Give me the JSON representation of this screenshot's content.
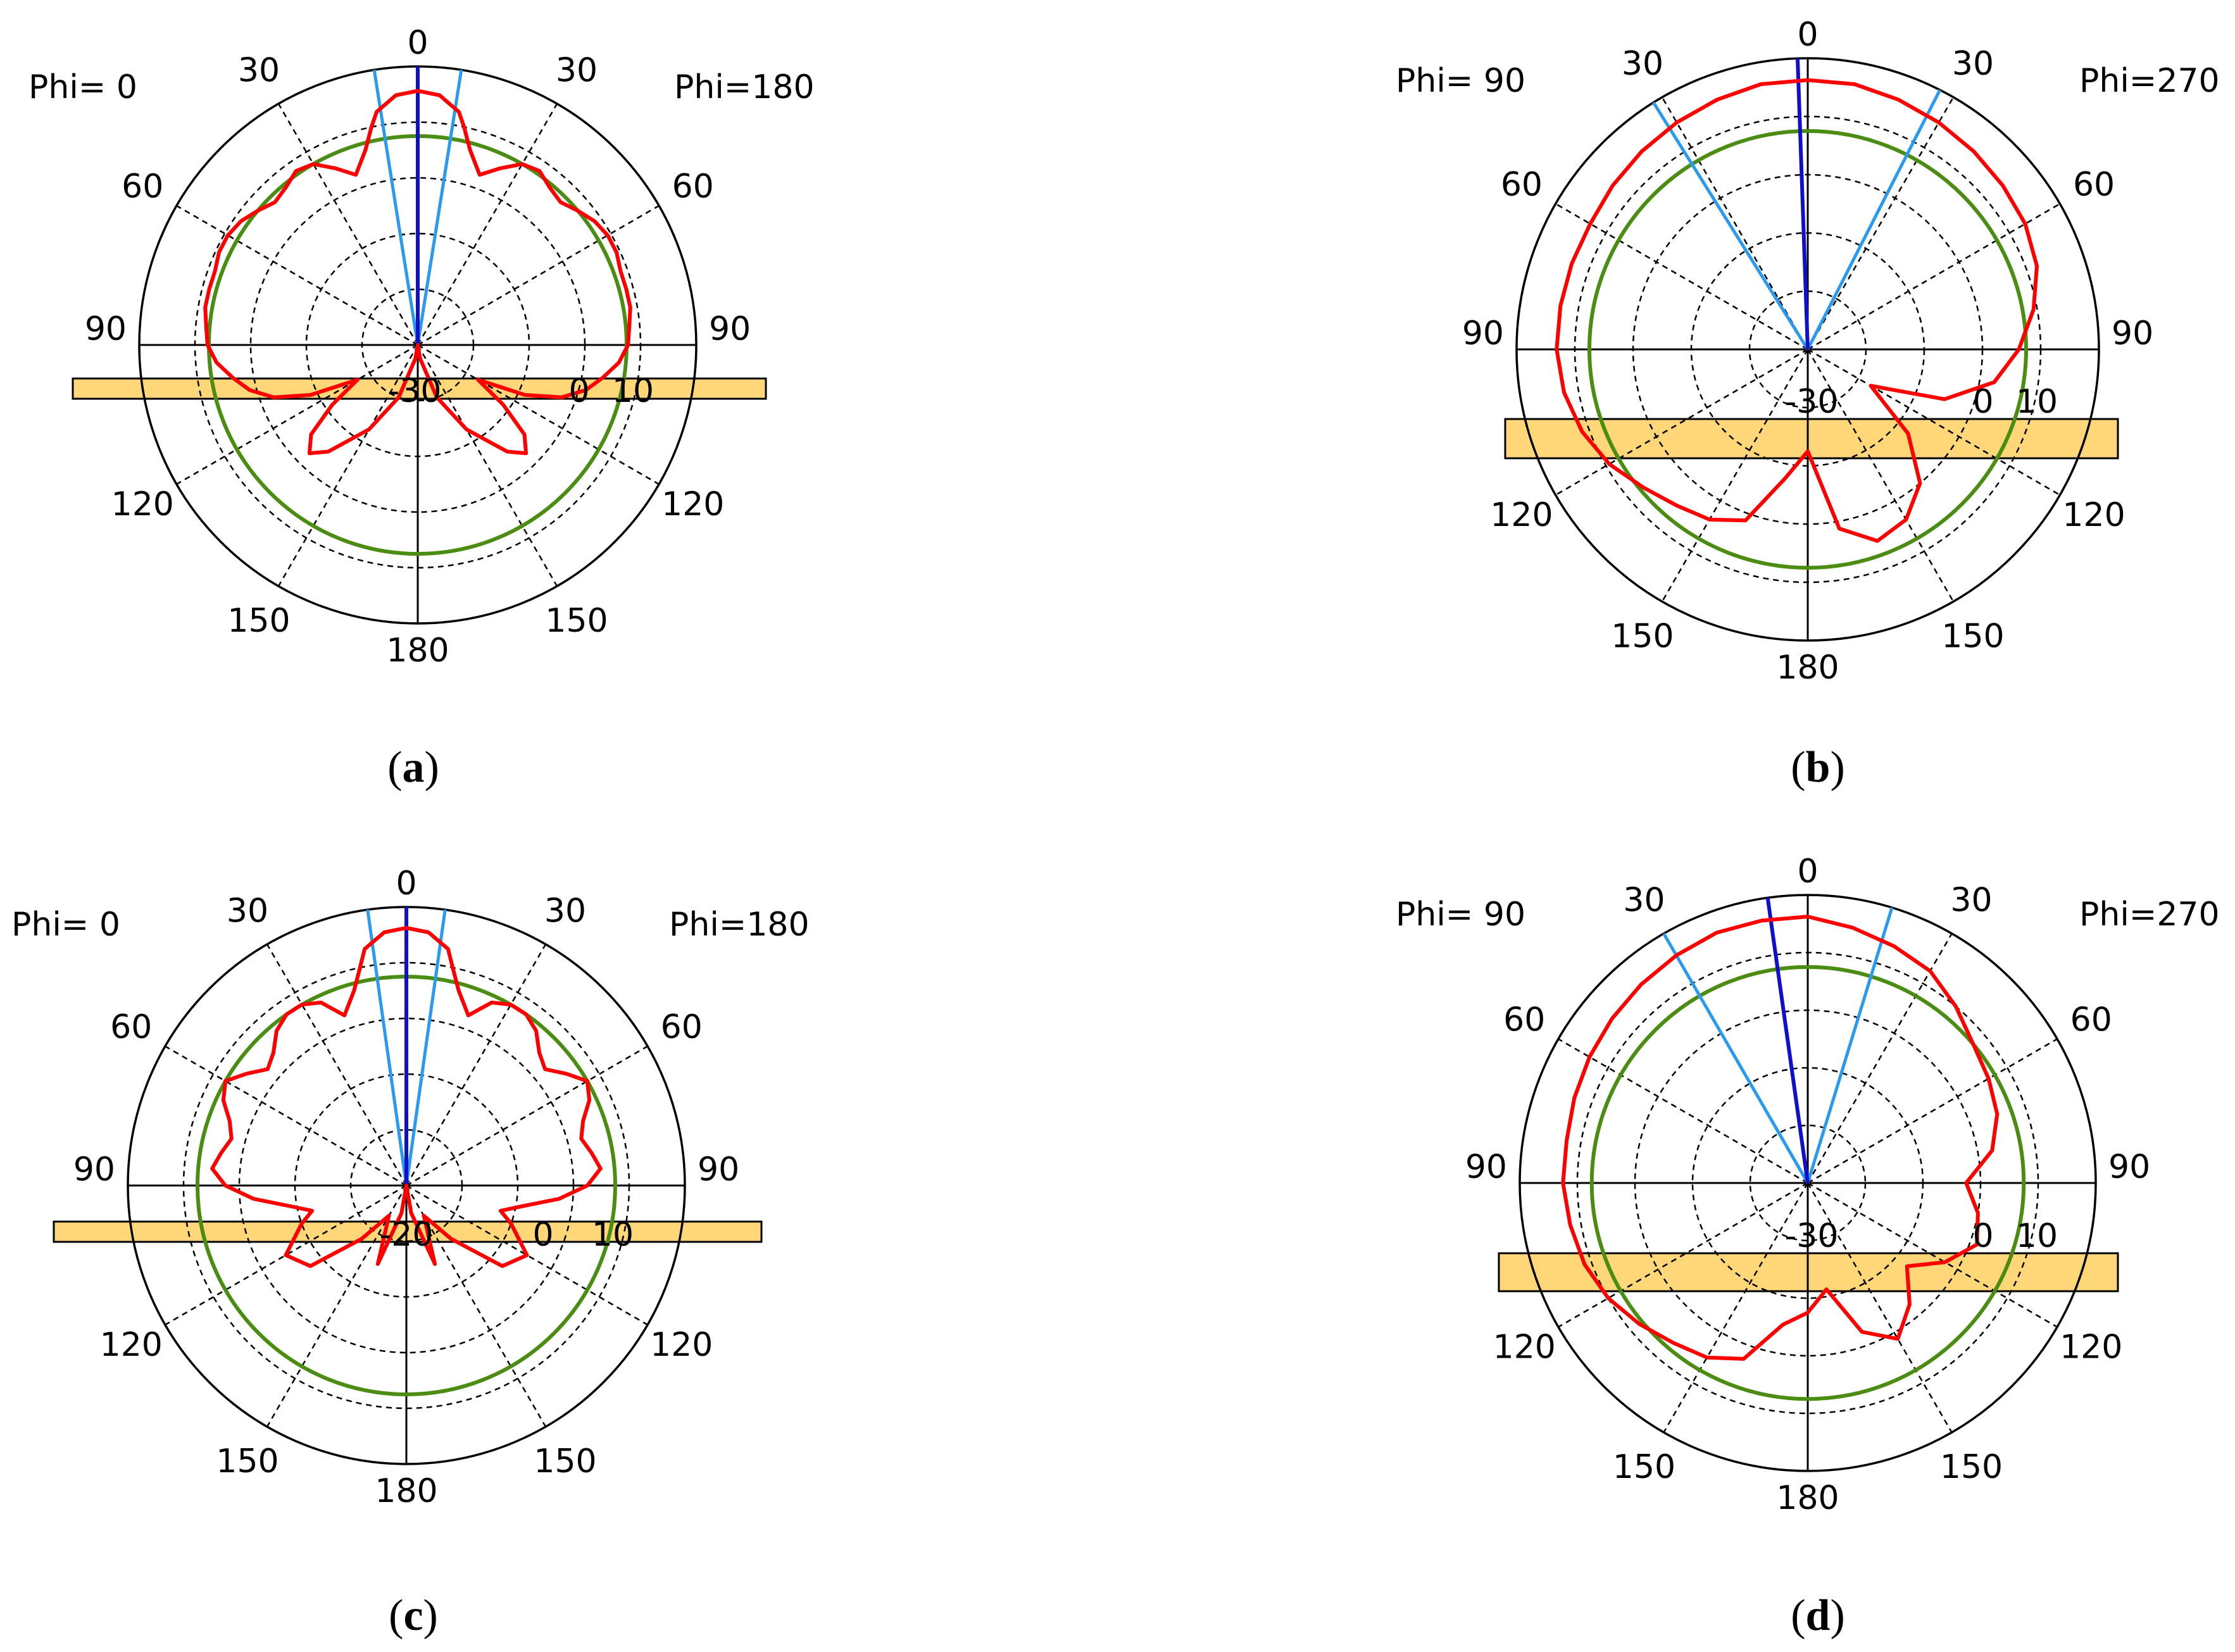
{
  "colors": {
    "pattern": "#ff0000",
    "reference_circle": "#4b8c12",
    "beam_axis": "#1010cc",
    "beam_edge": "#2a9af0",
    "ground_bar": "#ffd778",
    "grid": "#000000",
    "gridline_dashed": "#000000"
  },
  "chart_data": [
    {
      "type": "polar",
      "panel": "(a)",
      "caption_letter": "a",
      "left_label": "Phi=  0",
      "right_label": "Phi=180",
      "angle_labels": {
        "top": "0",
        "upper_left": "30",
        "upper_right": "30",
        "left60": "60",
        "right60": "60",
        "left90": "90",
        "right90": "90",
        "left120": "120",
        "right120": "120",
        "left150": "150",
        "right150": "150",
        "bottom": "180"
      },
      "radial_labels": [
        "-30",
        "0",
        "10"
      ],
      "radial_range_db": [
        -30,
        10
      ],
      "grid": true,
      "reference_circle_db": 0,
      "main_beam_deg": 0,
      "beam_edges_deg": [
        -9,
        9
      ],
      "pattern_db": {
        "angles": [
          0,
          5,
          10,
          12,
          15,
          20,
          25,
          30,
          35,
          40,
          45,
          50,
          55,
          60,
          65,
          70,
          75,
          80,
          85,
          90,
          95,
          100,
          105,
          110,
          115,
          120,
          125,
          130,
          135,
          140,
          150,
          160,
          170,
          180
        ],
        "left": [
          6.5,
          6,
          4,
          2,
          -1,
          -4,
          -2,
          0,
          0.5,
          -0.5,
          -1,
          0,
          1,
          1.5,
          1.5,
          1,
          1,
          1,
          0.5,
          0.2,
          -1,
          -3,
          -5,
          -8,
          -13,
          -20,
          -15,
          -10,
          -8,
          -10,
          -16,
          -22,
          -28,
          -30
        ],
        "right": [
          6.5,
          6,
          4,
          2,
          -1,
          -4,
          -2,
          0,
          0.5,
          -0.5,
          -1,
          0,
          1,
          1.5,
          1.5,
          1,
          1,
          1,
          0.5,
          0.2,
          -1,
          -3,
          -5,
          -8,
          -13,
          -20,
          -15,
          -10,
          -8,
          -10,
          -16,
          -22,
          -28,
          -30
        ]
      }
    },
    {
      "type": "polar",
      "panel": "(b)",
      "caption_letter": "b",
      "left_label": "Phi= 90",
      "right_label": "Phi=270",
      "angle_labels": {
        "top": "0",
        "upper_left": "30",
        "upper_right": "30",
        "left60": "60",
        "right60": "60",
        "left90": "90",
        "right90": "90",
        "left120": "120",
        "right120": "120",
        "left150": "150",
        "right150": "150",
        "bottom": "180"
      },
      "radial_labels": [
        "-30",
        "0",
        "10"
      ],
      "radial_range_db": [
        -30,
        10
      ],
      "grid": true,
      "reference_circle_db": 0,
      "main_beam_deg": -2,
      "beam_edges_deg": [
        -32,
        27
      ],
      "pattern_db": {
        "angles": [
          0,
          10,
          20,
          30,
          40,
          50,
          60,
          70,
          80,
          90,
          100,
          110,
          120,
          130,
          140,
          150,
          160,
          170,
          180
        ],
        "left": [
          7,
          7,
          6.5,
          6,
          5.5,
          5,
          4.5,
          4.5,
          4.5,
          4.5,
          4,
          3,
          1.5,
          -0.5,
          -2,
          -3,
          -5,
          -12,
          -16
        ],
        "right": [
          7,
          7,
          6.5,
          6,
          5.5,
          5,
          4.5,
          3.5,
          1.5,
          -1,
          -4,
          -10,
          -20,
          -12,
          -6,
          -3,
          -2,
          -5,
          -16
        ]
      }
    },
    {
      "type": "polar",
      "panel": "(c)",
      "caption_letter": "c",
      "left_label": "Phi=  0",
      "right_label": "Phi=180",
      "angle_labels": {
        "top": "0",
        "upper_left": "30",
        "upper_right": "30",
        "left60": "60",
        "right60": "60",
        "left90": "90",
        "right90": "90",
        "left120": "120",
        "right120": "120",
        "left150": "150",
        "right150": "150",
        "bottom": "180"
      },
      "radial_labels": [
        "-20",
        "0",
        "10"
      ],
      "radial_range_db": [
        -30,
        10
      ],
      "grid": true,
      "reference_circle_db": 0,
      "main_beam_deg": 0,
      "beam_edges_deg": [
        -8,
        8
      ],
      "pattern_db": {
        "angles": [
          0,
          5,
          10,
          12,
          15,
          20,
          25,
          30,
          35,
          40,
          45,
          50,
          55,
          60,
          65,
          70,
          75,
          80,
          85,
          90,
          95,
          100,
          105,
          110,
          120,
          130,
          140,
          150,
          160,
          170,
          180
        ],
        "left": [
          7,
          6.5,
          4.5,
          2,
          -1,
          -4,
          -1,
          0,
          0,
          -1,
          -3,
          -4,
          -2,
          0,
          -1,
          -3,
          -4,
          -3,
          -2,
          -4,
          -8,
          -13,
          -16,
          -14,
          -10,
          -12,
          -20,
          -25,
          -18,
          -26,
          -30
        ],
        "right": [
          7,
          6.5,
          4.5,
          2,
          -1,
          -4,
          -1,
          0,
          0,
          -1,
          -3,
          -4,
          -2,
          0,
          -1,
          -3,
          -4,
          -3,
          -2,
          -4,
          -8,
          -13,
          -16,
          -14,
          -10,
          -12,
          -20,
          -25,
          -18,
          -26,
          -30
        ]
      }
    },
    {
      "type": "polar",
      "panel": "(d)",
      "caption_letter": "d",
      "left_label": "Phi= 90",
      "right_label": "Phi=270",
      "angle_labels": {
        "top": "0",
        "upper_left": "30",
        "upper_right": "30",
        "left60": "60",
        "right60": "60",
        "left90": "90",
        "right90": "90",
        "left120": "120",
        "right120": "120",
        "left150": "150",
        "right150": "150",
        "bottom": "180"
      },
      "radial_labels": [
        "-30",
        "0",
        "10"
      ],
      "radial_range_db": [
        -30,
        10
      ],
      "grid": true,
      "reference_circle_db": 0,
      "main_beam_deg": -8,
      "beam_edges_deg": [
        -30,
        17
      ],
      "pattern_db": {
        "angles": [
          0,
          10,
          20,
          30,
          40,
          50,
          60,
          70,
          80,
          90,
          100,
          110,
          120,
          130,
          140,
          150,
          160,
          170,
          180
        ],
        "left": [
          7,
          7,
          7,
          6.5,
          6,
          5.5,
          5,
          4.5,
          4,
          4,
          3.5,
          3,
          2,
          0.5,
          -1,
          -2,
          -4,
          -10,
          -12
        ],
        "right": [
          7,
          6,
          5,
          4,
          2,
          0,
          -1,
          -2,
          -4,
          -8,
          -6,
          -5,
          -8,
          -12,
          -8,
          -5,
          -8,
          -15,
          -12
        ]
      }
    }
  ]
}
